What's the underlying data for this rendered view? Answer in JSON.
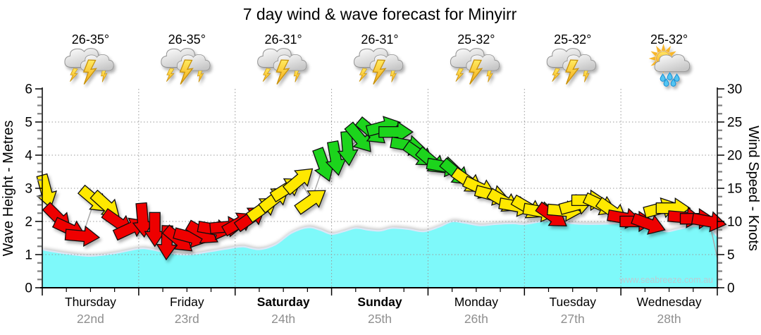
{
  "title": "7 day wind & wave forecast for Minyirr",
  "watermark": "www.seabreeze.com.au",
  "axes": {
    "left_label": "Wave Height - Metres",
    "right_label": "Wind Speed - Knots",
    "left_ticks": [
      0,
      1,
      2,
      3,
      4,
      5,
      6
    ],
    "right_ticks": [
      0,
      5,
      10,
      15,
      20,
      25,
      30
    ]
  },
  "days": [
    {
      "name": "Thursday",
      "date": "22nd",
      "temp": "26-35°",
      "icon": "storm",
      "bold": false
    },
    {
      "name": "Friday",
      "date": "23rd",
      "temp": "26-35°",
      "icon": "storm",
      "bold": false
    },
    {
      "name": "Saturday",
      "date": "24th",
      "temp": "26-31°",
      "icon": "storm",
      "bold": true
    },
    {
      "name": "Sunday",
      "date": "25th",
      "temp": "26-31°",
      "icon": "storm",
      "bold": true
    },
    {
      "name": "Monday",
      "date": "26th",
      "temp": "25-32°",
      "icon": "storm",
      "bold": false
    },
    {
      "name": "Tuesday",
      "date": "27th",
      "temp": "25-32°",
      "icon": "storm",
      "bold": false
    },
    {
      "name": "Wednesday",
      "date": "28th",
      "temp": "25-32°",
      "icon": "sun-shower",
      "bold": false
    }
  ],
  "colors": {
    "wave": "#7EF9FA",
    "wave_edge": "#DCE6F5",
    "red": "#EE0000",
    "yellow": "#FFE800",
    "green": "#1CD41C",
    "grid": "#999999",
    "wind_line": "#AAAAAA",
    "date_text": "#8F8F8F"
  },
  "chart_data": {
    "type": "area",
    "title": "7 day wind & wave forecast for Minyirr",
    "x_axis": {
      "unit": "hours",
      "range": [
        0,
        168
      ],
      "minor_tick_hours": 6,
      "day_boundary_hours": 24,
      "categories": [
        "Thursday 22nd",
        "Friday 23rd",
        "Saturday 24th",
        "Sunday 25th",
        "Monday 26th",
        "Tuesday 27th",
        "Wednesday 28th"
      ]
    },
    "y_left": {
      "label": "Wave Height - Metres",
      "range": [
        0,
        6
      ],
      "gridline_step": 1
    },
    "y_right": {
      "label": "Wind Speed - Knots",
      "range": [
        0,
        30
      ],
      "gridline_step": 5
    },
    "legend": "none",
    "wave_height_m": [
      [
        0,
        1.15
      ],
      [
        6,
        1.03
      ],
      [
        12,
        0.96
      ],
      [
        18,
        1.04
      ],
      [
        24,
        1.18
      ],
      [
        27,
        1.16
      ],
      [
        31,
        1.06
      ],
      [
        36,
        1.0
      ],
      [
        42,
        1.1
      ],
      [
        47,
        1.2
      ],
      [
        50,
        1.24
      ],
      [
        54,
        1.16
      ],
      [
        58,
        1.3
      ],
      [
        62,
        1.65
      ],
      [
        66,
        1.82
      ],
      [
        69,
        1.75
      ],
      [
        72,
        1.62
      ],
      [
        75,
        1.7
      ],
      [
        78,
        1.8
      ],
      [
        81,
        1.75
      ],
      [
        84,
        1.72
      ],
      [
        87,
        1.8
      ],
      [
        91,
        1.77
      ],
      [
        95,
        1.7
      ],
      [
        99,
        1.85
      ],
      [
        102,
        2.0
      ],
      [
        105,
        1.96
      ],
      [
        109,
        1.88
      ],
      [
        113,
        1.92
      ],
      [
        117,
        1.94
      ],
      [
        120,
        1.92
      ],
      [
        124,
        2.0
      ],
      [
        126,
        2.03
      ],
      [
        129,
        1.98
      ],
      [
        133,
        1.93
      ],
      [
        137,
        1.92
      ],
      [
        141,
        1.93
      ],
      [
        144,
        1.96
      ],
      [
        147,
        2.0
      ],
      [
        151,
        1.9
      ],
      [
        155,
        1.7
      ],
      [
        158,
        1.76
      ],
      [
        161,
        1.84
      ],
      [
        164,
        1.88
      ],
      [
        166,
        1.84
      ],
      [
        167.5,
        1.62
      ],
      [
        168,
        1.55
      ]
    ],
    "wind_knots_dir_color": [
      [
        1,
        14.5,
        75,
        "Y"
      ],
      [
        4,
        10.5,
        45,
        "R"
      ],
      [
        7,
        8.8,
        25,
        "R"
      ],
      [
        10,
        7.8,
        5,
        "R"
      ],
      [
        13,
        13.2,
        40,
        "Y"
      ],
      [
        16,
        12.4,
        42,
        "Y"
      ],
      [
        19,
        9.8,
        35,
        "R"
      ],
      [
        22,
        9.0,
        -25,
        "R"
      ],
      [
        25,
        10.2,
        85,
        "R"
      ],
      [
        28,
        8.8,
        90,
        "R"
      ],
      [
        31,
        6.8,
        92,
        "R"
      ],
      [
        34,
        7.2,
        40,
        "R"
      ],
      [
        37,
        7.6,
        15,
        "R"
      ],
      [
        40,
        8.2,
        30,
        "R"
      ],
      [
        43,
        8.8,
        10,
        "R"
      ],
      [
        46,
        9.2,
        -5,
        "R"
      ],
      [
        49,
        9.8,
        -30,
        "R"
      ],
      [
        52,
        10.6,
        -35,
        "R"
      ],
      [
        55,
        12.0,
        -35,
        "Y"
      ],
      [
        58,
        13.5,
        -38,
        "Y"
      ],
      [
        61,
        15.0,
        -32,
        "Y"
      ],
      [
        64,
        16.3,
        -40,
        "Y"
      ],
      [
        67,
        13.2,
        -35,
        "Y"
      ],
      [
        70,
        18.5,
        70,
        "G"
      ],
      [
        73,
        19.5,
        80,
        "G"
      ],
      [
        76,
        21.0,
        85,
        "G"
      ],
      [
        79,
        22.5,
        50,
        "G"
      ],
      [
        82,
        23.5,
        40,
        "G"
      ],
      [
        85,
        24.3,
        -15,
        "G"
      ],
      [
        88,
        23.5,
        0,
        "G"
      ],
      [
        91,
        21.5,
        10,
        "G"
      ],
      [
        94,
        20.0,
        35,
        "G"
      ],
      [
        97,
        19.0,
        40,
        "G"
      ],
      [
        100,
        18.3,
        10,
        "G"
      ],
      [
        103,
        17.3,
        40,
        "G"
      ],
      [
        106,
        16.0,
        35,
        "Y"
      ],
      [
        109,
        15.0,
        25,
        "Y"
      ],
      [
        112,
        14.0,
        15,
        "Y"
      ],
      [
        115,
        13.0,
        30,
        "Y"
      ],
      [
        118,
        12.3,
        10,
        "Y"
      ],
      [
        121,
        12.0,
        30,
        "Y"
      ],
      [
        124,
        11.5,
        10,
        "Y"
      ],
      [
        127,
        10.8,
        35,
        "R"
      ],
      [
        130,
        11.6,
        5,
        "Y"
      ],
      [
        133,
        12.5,
        -15,
        "Y"
      ],
      [
        136,
        13.2,
        0,
        "Y"
      ],
      [
        139,
        12.5,
        25,
        "Y"
      ],
      [
        142,
        11.5,
        35,
        "Y"
      ],
      [
        145,
        10.5,
        10,
        "R"
      ],
      [
        148,
        10.0,
        0,
        "R"
      ],
      [
        151,
        9.6,
        20,
        "R"
      ],
      [
        154,
        12.0,
        -15,
        "Y"
      ],
      [
        157,
        12.0,
        0,
        "Y"
      ],
      [
        160,
        10.6,
        5,
        "R"
      ],
      [
        163,
        10.4,
        0,
        "R"
      ],
      [
        166,
        10.0,
        10,
        "R"
      ]
    ],
    "wind_line_end": [
      168,
      4.5
    ]
  }
}
